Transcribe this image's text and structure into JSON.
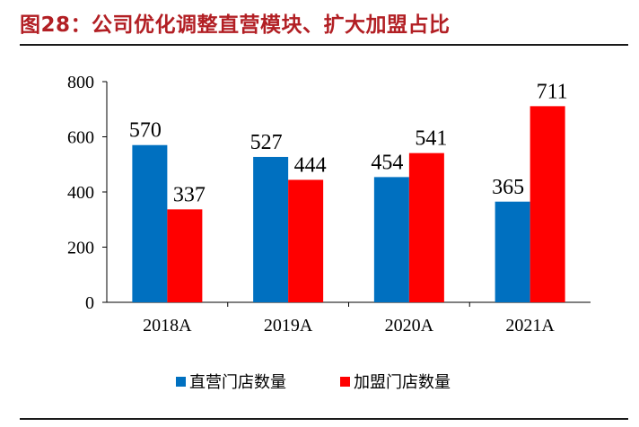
{
  "header": {
    "title": "图28：公司优化调整直营模块、扩大加盟占比"
  },
  "chart_data": {
    "type": "bar",
    "title": "图28：公司优化调整直营模块、扩大加盟占比",
    "categories": [
      "2018A",
      "2019A",
      "2020A",
      "2021A"
    ],
    "series": [
      {
        "name": "直营门店数量",
        "values": [
          570,
          527,
          454,
          365
        ],
        "color": "#0070c0"
      },
      {
        "name": "加盟门店数量",
        "values": [
          337,
          444,
          541,
          711
        ],
        "color": "#ff0000"
      }
    ],
    "ylim": [
      0,
      800
    ],
    "yticks": [
      0,
      200,
      400,
      600,
      800
    ],
    "xlabel": "",
    "ylabel": "",
    "grid": false,
    "legend": "bottom-center"
  }
}
